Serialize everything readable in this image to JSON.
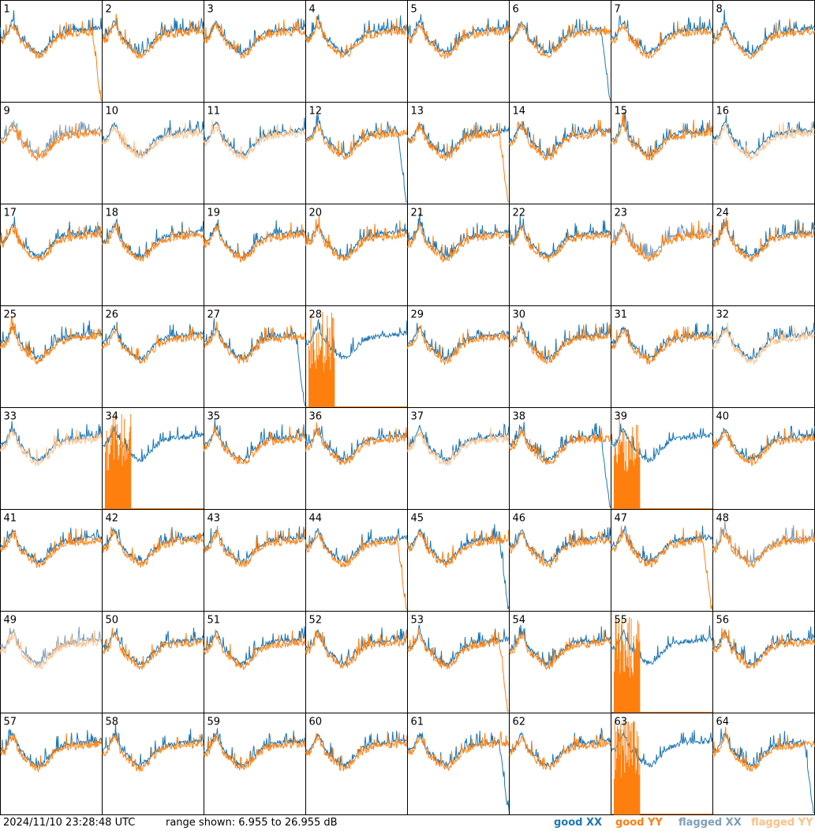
{
  "chart_data": {
    "type": "line",
    "layout": "8x8 small-multiples grid, one panel per antenna tile",
    "panels": [
      1,
      2,
      3,
      4,
      5,
      6,
      7,
      8,
      9,
      10,
      11,
      12,
      13,
      14,
      15,
      16,
      17,
      18,
      19,
      20,
      21,
      22,
      23,
      24,
      25,
      26,
      27,
      28,
      29,
      30,
      31,
      32,
      33,
      34,
      35,
      36,
      37,
      38,
      39,
      40,
      41,
      42,
      43,
      44,
      45,
      46,
      47,
      48,
      49,
      50,
      51,
      52,
      53,
      54,
      55,
      56,
      57,
      58,
      59,
      60,
      61,
      62,
      63,
      64
    ],
    "flagged_xx": [
      9,
      23,
      48,
      49
    ],
    "flagged_yy": [
      10,
      11,
      16,
      32,
      33,
      37,
      49
    ],
    "range_db": [
      6.955,
      26.955
    ],
    "series": [
      {
        "name": "good XX",
        "color": "#1f77b4"
      },
      {
        "name": "good YY",
        "color": "#ff7f0e"
      },
      {
        "name": "flagged XX",
        "color": "#7f9fb9"
      },
      {
        "name": "flagged YY",
        "color": "#ffbf87"
      }
    ]
  },
  "footer": {
    "timestamp": "2024/11/10 23:28:48 UTC",
    "range_text": "range shown: 6.955 to 26.955 dB",
    "legend": {
      "good_xx": "good XX",
      "good_yy": "good YY",
      "flagged_xx": "flagged XX",
      "flagged_yy": "flagged YY"
    }
  }
}
